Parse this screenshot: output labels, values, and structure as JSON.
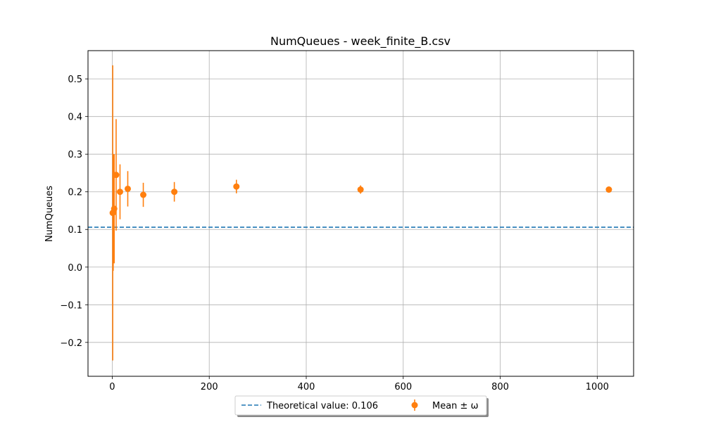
{
  "chart_data": {
    "type": "scatter",
    "title": "NumQueues - week_finite_B.csv",
    "xlabel": "",
    "ylabel": "NumQueues",
    "xlim": [
      -50,
      1075
    ],
    "ylim": [
      -0.29,
      0.575
    ],
    "xticks": [
      0,
      200,
      400,
      600,
      800,
      1000
    ],
    "yticks": [
      -0.2,
      -0.1,
      0.0,
      0.1,
      0.2,
      0.3,
      0.4,
      0.5
    ],
    "ytick_labels": [
      "−0.2",
      "−0.1",
      "0.0",
      "0.1",
      "0.2",
      "0.3",
      "0.4",
      "0.5"
    ],
    "grid": true,
    "legend_position": "lower-center-outside",
    "theoretical": {
      "label": "Theoretical value: 0.106",
      "value": 0.106,
      "color": "#1f77b4",
      "style": "dashed"
    },
    "series": [
      {
        "name": "Mean ± ω",
        "color": "#ff7f0e",
        "x": [
          1,
          2,
          4,
          8,
          16,
          32,
          64,
          128,
          256,
          512,
          1024
        ],
        "y": [
          0.144,
          0.145,
          0.155,
          0.245,
          0.2,
          0.208,
          0.192,
          0.2,
          0.214,
          0.206,
          0.206
        ],
        "err": [
          0.392,
          0.155,
          0.145,
          0.148,
          0.073,
          0.047,
          0.032,
          0.026,
          0.018,
          0.011,
          0.006
        ]
      }
    ]
  }
}
